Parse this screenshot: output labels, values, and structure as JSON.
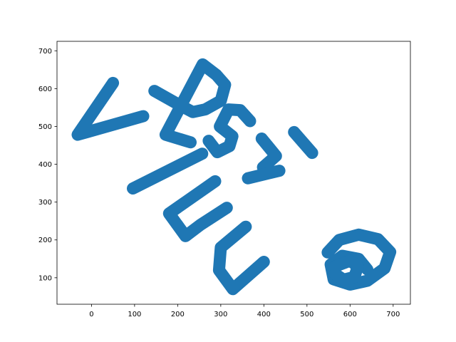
{
  "chart_data": {
    "type": "scatter",
    "title": "",
    "xlabel": "",
    "ylabel": "",
    "xlim": [
      -80,
      740
    ],
    "ylim": [
      30,
      725
    ],
    "xticks": [
      0,
      100,
      200,
      300,
      400,
      500,
      600,
      700
    ],
    "yticks": [
      100,
      200,
      300,
      400,
      500,
      600,
      700
    ],
    "grid": false,
    "legend": "none",
    "marker_color": "#1f77b4",
    "series": [
      {
        "strokes": [
          [
            [
              50,
              615
            ],
            [
              -32,
              478
            ],
            [
              120,
              527
            ]
          ],
          [
            [
              230,
              458
            ],
            [
              172,
              478
            ],
            [
              258,
              664
            ],
            [
              290,
              636
            ],
            [
              310,
              610
            ],
            [
              300,
              568
            ],
            [
              264,
              545
            ],
            [
              235,
              538
            ],
            [
              210,
              553
            ],
            [
              146,
              594
            ]
          ],
          [
            [
              368,
              514
            ],
            [
              345,
              543
            ],
            [
              318,
              545
            ],
            [
              298,
              500
            ],
            [
              327,
              474
            ],
            [
              320,
              448
            ],
            [
              292,
              432
            ],
            [
              272,
              462
            ]
          ],
          [
            [
              395,
              468
            ],
            [
              428,
              422
            ],
            [
              398,
              392
            ]
          ],
          [
            [
              96,
              336
            ],
            [
              257,
              428
            ]
          ],
          [
            [
              287,
              355
            ],
            [
              180,
              270
            ],
            [
              218,
              210
            ],
            [
              253,
              240
            ],
            [
              314,
              285
            ]
          ],
          [
            [
              400,
              142
            ],
            [
              328,
              70
            ],
            [
              296,
              120
            ],
            [
              300,
              180
            ],
            [
              358,
              235
            ]
          ],
          [
            [
              436,
              383
            ],
            [
              363,
              363
            ]
          ],
          [
            [
              470,
              485
            ],
            [
              512,
              430
            ]
          ],
          [
            [
              548,
              167
            ],
            [
              575,
              200
            ],
            [
              620,
              214
            ],
            [
              665,
              202
            ],
            [
              693,
              168
            ],
            [
              680,
              125
            ],
            [
              640,
              92
            ],
            [
              600,
              82
            ],
            [
              562,
              96
            ],
            [
              555,
              135
            ],
            [
              582,
              158
            ],
            [
              620,
              150
            ],
            [
              640,
              122
            ]
          ],
          [
            [
              565,
              130
            ],
            [
              600,
              145
            ],
            [
              618,
              130
            ],
            [
              610,
              102
            ],
            [
              585,
              95
            ],
            [
              565,
              110
            ]
          ]
        ]
      }
    ]
  }
}
